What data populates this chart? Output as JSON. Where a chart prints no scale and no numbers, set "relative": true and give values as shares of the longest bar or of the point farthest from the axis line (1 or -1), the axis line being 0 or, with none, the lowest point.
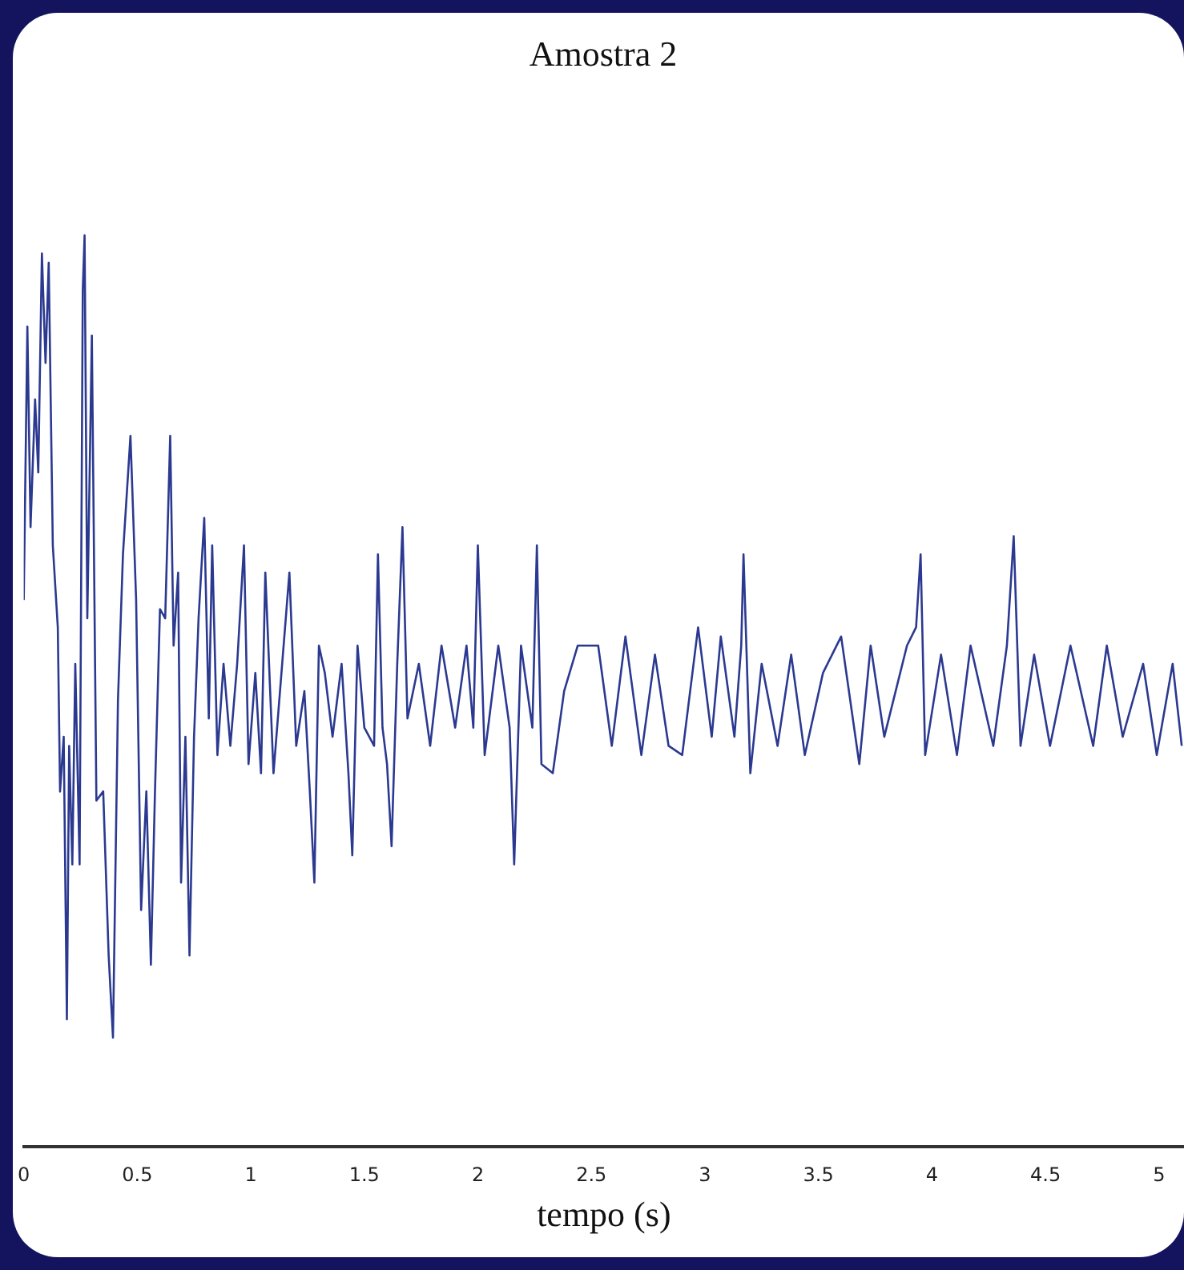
{
  "chart_data": {
    "type": "line",
    "title": "Amostra 2",
    "xlabel": "tempo (s)",
    "relative": true,
    "marker": "none",
    "color": "#2b3990",
    "xlim": [
      0,
      5.11
    ],
    "xticks": [
      0,
      0.5,
      1,
      1.5,
      2,
      2.5,
      3,
      3.5,
      4,
      4.5,
      5
    ],
    "x": [
      0,
      0.016,
      0.03,
      0.05,
      0.064,
      0.08,
      0.096,
      0.11,
      0.128,
      0.15,
      0.16,
      0.176,
      0.19,
      0.2,
      0.214,
      0.227,
      0.246,
      0.26,
      0.268,
      0.28,
      0.3,
      0.32,
      0.35,
      0.374,
      0.393,
      0.415,
      0.437,
      0.47,
      0.495,
      0.517,
      0.54,
      0.56,
      0.578,
      0.6,
      0.623,
      0.645,
      0.66,
      0.68,
      0.693,
      0.712,
      0.73,
      0.75,
      0.77,
      0.795,
      0.815,
      0.83,
      0.853,
      0.88,
      0.91,
      0.94,
      0.97,
      0.99,
      1.02,
      1.045,
      1.064,
      1.1,
      1.17,
      1.2,
      1.236,
      1.26,
      1.28,
      1.3,
      1.326,
      1.36,
      1.4,
      1.43,
      1.447,
      1.47,
      1.5,
      1.543,
      1.56,
      1.58,
      1.6,
      1.62,
      1.645,
      1.668,
      1.69,
      1.74,
      1.79,
      1.84,
      1.9,
      1.95,
      1.98,
      2.0,
      2.03,
      2.09,
      2.14,
      2.16,
      2.19,
      2.24,
      2.26,
      2.28,
      2.33,
      2.38,
      2.44,
      2.53,
      2.59,
      2.65,
      2.72,
      2.78,
      2.84,
      2.9,
      2.97,
      3.03,
      3.07,
      3.13,
      3.16,
      3.17,
      3.2,
      3.25,
      3.32,
      3.38,
      3.44,
      3.52,
      3.6,
      3.68,
      3.73,
      3.79,
      3.89,
      3.93,
      3.95,
      3.97,
      4.04,
      4.11,
      4.17,
      4.27,
      4.33,
      4.36,
      4.39,
      4.45,
      4.52,
      4.61,
      4.71,
      4.77,
      4.84,
      4.93,
      4.99,
      5.06,
      5.1
    ],
    "values": [
      0.6,
      0.9,
      0.68,
      0.82,
      0.74,
      0.98,
      0.86,
      0.97,
      0.66,
      0.57,
      0.39,
      0.45,
      0.14,
      0.44,
      0.31,
      0.53,
      0.31,
      0.94,
      1.0,
      0.58,
      0.89,
      0.38,
      0.39,
      0.21,
      0.12,
      0.49,
      0.65,
      0.78,
      0.6,
      0.26,
      0.39,
      0.2,
      0.39,
      0.59,
      0.58,
      0.78,
      0.55,
      0.63,
      0.29,
      0.45,
      0.21,
      0.45,
      0.58,
      0.69,
      0.47,
      0.66,
      0.43,
      0.53,
      0.44,
      0.53,
      0.66,
      0.42,
      0.52,
      0.41,
      0.63,
      0.41,
      0.63,
      0.44,
      0.5,
      0.39,
      0.29,
      0.55,
      0.52,
      0.45,
      0.53,
      0.41,
      0.32,
      0.55,
      0.46,
      0.44,
      0.65,
      0.46,
      0.42,
      0.33,
      0.53,
      0.68,
      0.47,
      0.53,
      0.44,
      0.55,
      0.46,
      0.55,
      0.46,
      0.66,
      0.43,
      0.55,
      0.46,
      0.31,
      0.55,
      0.46,
      0.66,
      0.42,
      0.41,
      0.5,
      0.55,
      0.55,
      0.44,
      0.56,
      0.43,
      0.54,
      0.44,
      0.43,
      0.57,
      0.45,
      0.56,
      0.45,
      0.55,
      0.65,
      0.41,
      0.53,
      0.44,
      0.54,
      0.43,
      0.52,
      0.56,
      0.42,
      0.55,
      0.45,
      0.55,
      0.57,
      0.65,
      0.43,
      0.54,
      0.43,
      0.55,
      0.44,
      0.55,
      0.67,
      0.44,
      0.54,
      0.44,
      0.55,
      0.44,
      0.55,
      0.45,
      0.53,
      0.43,
      0.53,
      0.44
    ]
  }
}
